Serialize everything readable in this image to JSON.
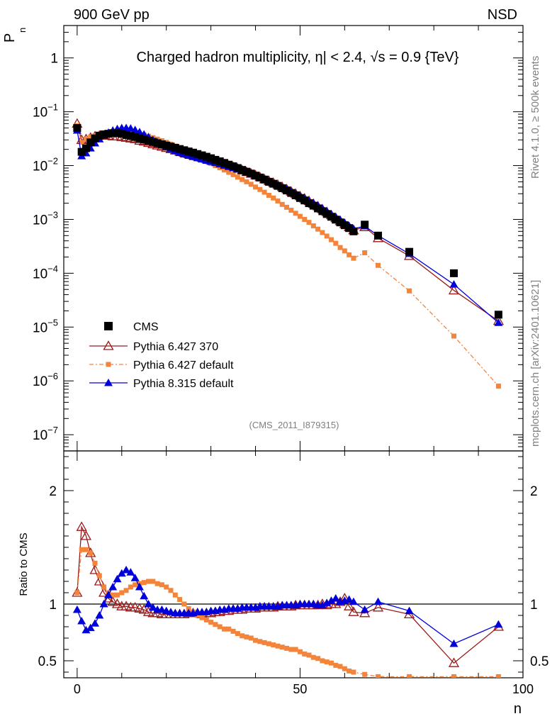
{
  "header": {
    "left": "900 GeV pp",
    "right": "NSD"
  },
  "main_title": "Charged hadron multiplicity, η| < 2.4, √s = 0.9 {TeV}",
  "side_text": {
    "rivet": "Rivet 4.1.0, ≥ 500k events",
    "mcplots": "mcplots.cern.ch [arXiv:2401.10621]"
  },
  "analysis_tag": "(CMS_2011_I879315)",
  "chart_data": {
    "type": "line",
    "ylabel_top": "P",
    "ylabel_top_sub": "n",
    "ylabel_bottom": "Ratio to CMS",
    "xlabel": "n",
    "xlim": [
      -3,
      100
    ],
    "ylim_top": [
      5e-08,
      4
    ],
    "ylim_bottom": [
      0.35,
      2.35
    ],
    "x_ticks": [
      0,
      50,
      100
    ],
    "y_ticks_top": [
      {
        "v": 1,
        "base": "1",
        "exp": ""
      },
      {
        "v": 0.1,
        "base": "10",
        "exp": "−1"
      },
      {
        "v": 0.01,
        "base": "10",
        "exp": "−2"
      },
      {
        "v": 0.001,
        "base": "10",
        "exp": "−3"
      },
      {
        "v": 0.0001,
        "base": "10",
        "exp": "−4"
      },
      {
        "v": 1e-05,
        "base": "10",
        "exp": "−5"
      },
      {
        "v": 1e-06,
        "base": "10",
        "exp": "−6"
      },
      {
        "v": 1e-07,
        "base": "10",
        "exp": "−7"
      }
    ],
    "y_ticks_bottom": [
      0.5,
      1,
      2
    ],
    "legend": [
      {
        "name": "CMS",
        "color": "#000000",
        "marker": "square"
      },
      {
        "name": "Pythia 6.427 370",
        "color": "#9a1b1b",
        "marker": "triangle-open"
      },
      {
        "name": "Pythia 6.427 default",
        "color": "#f3843a",
        "marker": "square-small"
      },
      {
        "name": "Pythia 8.315 default",
        "color": "#0000dd",
        "marker": "triangle"
      }
    ],
    "x": [
      0,
      1,
      2,
      3,
      4,
      5,
      6,
      7,
      8,
      9,
      10,
      11,
      12,
      13,
      14,
      15,
      16,
      17,
      18,
      19,
      20,
      21,
      22,
      23,
      24,
      25,
      26,
      27,
      28,
      29,
      30,
      31,
      32,
      33,
      34,
      35,
      36,
      37,
      38,
      39,
      40,
      41,
      42,
      43,
      44,
      45,
      46,
      47,
      48,
      49,
      50,
      51,
      52,
      53,
      54,
      55,
      56,
      57,
      58,
      59,
      60,
      61,
      62,
      64.5,
      67.5,
      74.5,
      84.5,
      94.5
    ],
    "cms": [
      0.05,
      0.018,
      0.021,
      0.027,
      0.032,
      0.036,
      0.038,
      0.039,
      0.04,
      0.04,
      0.039,
      0.037,
      0.0355,
      0.034,
      0.032,
      0.0305,
      0.029,
      0.0275,
      0.026,
      0.0248,
      0.0236,
      0.0225,
      0.0214,
      0.0203,
      0.0193,
      0.0183,
      0.0174,
      0.0164,
      0.0155,
      0.0146,
      0.0137,
      0.0128,
      0.012,
      0.0112,
      0.0104,
      0.0097,
      0.009,
      0.0083,
      0.0077,
      0.0071,
      0.0065,
      0.006,
      0.0055,
      0.005,
      0.0046,
      0.0042,
      0.0038,
      0.00345,
      0.0031,
      0.0028,
      0.0025,
      0.00225,
      0.002,
      0.0018,
      0.0016,
      0.00142,
      0.00126,
      0.00112,
      0.00099,
      0.00088,
      0.00078,
      0.00069,
      0.0006,
      0.0008,
      0.0005,
      0.00025,
      0.0001,
      1.7e-05
    ],
    "series": [
      {
        "name": "Pythia 6.427 370",
        "values": [
          0.06,
          0.03,
          0.031,
          0.033,
          0.035,
          0.036,
          0.036,
          0.036,
          0.035,
          0.035,
          0.034,
          0.033,
          0.032,
          0.031,
          0.029,
          0.028,
          0.0265,
          0.025,
          0.0237,
          0.0225,
          0.0213,
          0.0202,
          0.0192,
          0.0182,
          0.0173,
          0.0164,
          0.0156,
          0.0148,
          0.014,
          0.0133,
          0.0126,
          0.0119,
          0.0112,
          0.0106,
          0.01,
          0.0094,
          0.0088,
          0.0082,
          0.0076,
          0.0071,
          0.0066,
          0.0061,
          0.0056,
          0.0052,
          0.0048,
          0.0044,
          0.004,
          0.00365,
          0.0033,
          0.003,
          0.0027,
          0.00245,
          0.0022,
          0.00195,
          0.00175,
          0.00155,
          0.00137,
          0.0012,
          0.00106,
          0.00093,
          0.00082,
          0.00072,
          0.00063,
          0.00072,
          0.00045,
          0.00021,
          4.8e-05,
          1.3e-05
        ],
        "ratio": [
          1.1,
          1.68,
          1.6,
          1.45,
          1.3,
          1.2,
          1.1,
          1.05,
          1.02,
          1.0,
          0.98,
          0.98,
          0.97,
          0.97,
          0.96,
          0.95,
          0.93,
          0.92,
          0.92,
          0.91,
          0.91,
          0.91,
          0.91,
          0.91,
          0.91,
          0.92,
          0.92,
          0.92,
          0.91,
          0.92,
          0.92,
          0.93,
          0.93,
          0.94,
          0.94,
          0.95,
          0.95,
          0.95,
          0.96,
          0.96,
          0.96,
          0.97,
          0.97,
          0.97,
          0.97,
          0.98,
          0.98,
          0.98,
          0.98,
          0.99,
          0.99,
          0.99,
          0.99,
          0.99,
          0.99,
          1.0,
          0.99,
          1.0,
          1.0,
          1.02,
          1.05,
          0.98,
          0.93,
          0.92,
          0.97,
          0.91,
          0.48,
          0.8
        ]
      },
      {
        "name": "Pythia 6.427 default",
        "values": [
          0.055,
          0.027,
          0.031,
          0.034,
          0.036,
          0.037,
          0.038,
          0.039,
          0.0395,
          0.04,
          0.0405,
          0.041,
          0.041,
          0.0405,
          0.039,
          0.037,
          0.035,
          0.033,
          0.031,
          0.029,
          0.027,
          0.025,
          0.023,
          0.021,
          0.0192,
          0.0175,
          0.016,
          0.0146,
          0.0133,
          0.0121,
          0.011,
          0.01,
          0.0091,
          0.0083,
          0.0075,
          0.0068,
          0.0061,
          0.0055,
          0.005,
          0.0045,
          0.004,
          0.0036,
          0.0032,
          0.0028,
          0.0025,
          0.0022,
          0.0019,
          0.00168,
          0.00148,
          0.0013,
          0.00114,
          0.001,
          0.00088,
          0.00076,
          0.00066,
          0.00057,
          0.00049,
          0.00042,
          0.00036,
          0.0003,
          0.00026,
          0.00022,
          0.00019,
          0.00024,
          0.00014,
          4.7e-05,
          6.8e-06,
          8e-07
        ],
        "ratio": [
          1.1,
          1.48,
          1.48,
          1.45,
          1.36,
          1.25,
          1.15,
          1.1,
          1.08,
          1.08,
          1.1,
          1.12,
          1.15,
          1.17,
          1.18,
          1.19,
          1.2,
          1.2,
          1.18,
          1.17,
          1.15,
          1.12,
          1.08,
          1.04,
          1.0,
          0.96,
          0.93,
          0.9,
          0.88,
          0.86,
          0.84,
          0.82,
          0.8,
          0.78,
          0.78,
          0.76,
          0.74,
          0.72,
          0.71,
          0.7,
          0.68,
          0.67,
          0.66,
          0.65,
          0.64,
          0.63,
          0.62,
          0.61,
          0.6,
          0.6,
          0.58,
          0.56,
          0.55,
          0.53,
          0.52,
          0.5,
          0.49,
          0.48,
          0.46,
          0.45,
          0.43,
          0.41,
          0.4,
          0.38,
          0.36,
          0.36,
          0.36,
          0.36
        ]
      },
      {
        "name": "Pythia 8.315 default",
        "values": [
          0.045,
          0.015,
          0.017,
          0.021,
          0.026,
          0.031,
          0.036,
          0.041,
          0.045,
          0.048,
          0.05,
          0.05,
          0.049,
          0.046,
          0.042,
          0.038,
          0.034,
          0.03,
          0.027,
          0.0245,
          0.0222,
          0.0203,
          0.0186,
          0.0172,
          0.0162,
          0.0153,
          0.0145,
          0.0138,
          0.0131,
          0.0124,
          0.0118,
          0.0112,
          0.0106,
          0.01,
          0.0095,
          0.009,
          0.0085,
          0.0079,
          0.0074,
          0.0069,
          0.0064,
          0.0059,
          0.0055,
          0.0051,
          0.0047,
          0.0043,
          0.0039,
          0.0036,
          0.0033,
          0.003,
          0.0027,
          0.00245,
          0.0022,
          0.002,
          0.0018,
          0.0016,
          0.00142,
          0.00126,
          0.00112,
          0.00099,
          0.00087,
          0.00076,
          0.00067,
          0.00075,
          0.0005,
          0.00023,
          6.2e-05,
          1.2e-05
        ],
        "ratio": [
          0.95,
          0.85,
          0.77,
          0.79,
          0.83,
          0.9,
          1.0,
          1.08,
          1.15,
          1.22,
          1.27,
          1.3,
          1.28,
          1.23,
          1.15,
          1.07,
          1.0,
          0.97,
          0.95,
          0.95,
          0.94,
          0.93,
          0.92,
          0.92,
          0.92,
          0.92,
          0.92,
          0.93,
          0.93,
          0.93,
          0.94,
          0.94,
          0.95,
          0.95,
          0.96,
          0.96,
          0.96,
          0.97,
          0.97,
          0.97,
          0.97,
          0.98,
          0.98,
          0.98,
          0.98,
          0.98,
          0.99,
          0.99,
          0.99,
          0.99,
          1.0,
          1.0,
          1.0,
          1.0,
          0.99,
          0.99,
          1.01,
          1.03,
          1.05,
          1.02,
          1.03,
          1.04,
          1.02,
          0.95,
          1.02,
          0.94,
          0.65,
          0.82
        ]
      }
    ]
  }
}
